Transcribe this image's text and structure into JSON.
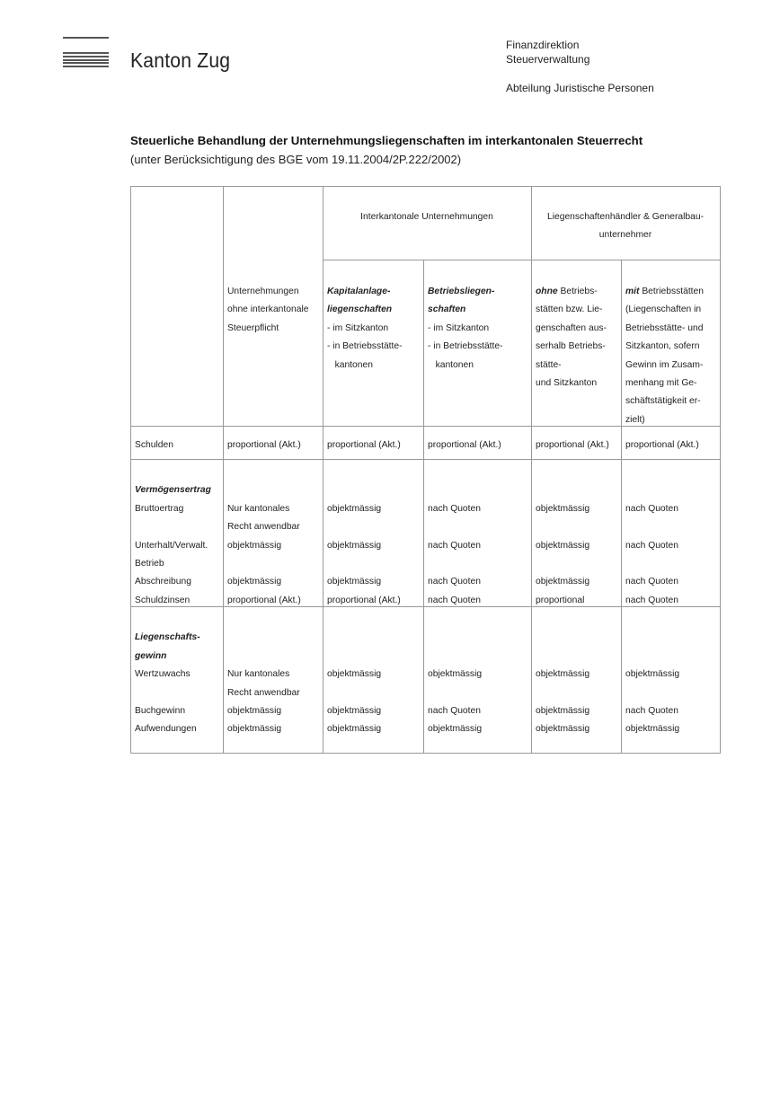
{
  "header": {
    "brand": "Kanton Zug",
    "department": "Finanzdirektion",
    "office": "Steuerverwaltung",
    "division": "Abteilung Juristische Personen"
  },
  "document": {
    "title": "Steuerliche Behandlung der Unternehmungsliegenschaften im interkantonalen Steuerrecht",
    "subtitle": "(unter Berücksichtigung des BGE vom 19.11.2004/2P.222/2002)"
  },
  "table": {
    "cells": [
      {
        "id": "group-interkantonal",
        "lines": [
          {
            "text": "Interkantonale Unternehmungen"
          }
        ]
      },
      {
        "id": "group-liegenschaftenhaendler",
        "lines": [
          {
            "text": "Liegenschaftenhändler & Generalbau-"
          },
          {
            "text": "unternehmer"
          }
        ]
      },
      {
        "id": "col-ohne-interkantonal",
        "lines": [
          {
            "text": "Unternehmungen"
          },
          {
            "text": "ohne interkantonale"
          },
          {
            "text": "Steuerpflicht"
          }
        ]
      },
      {
        "id": "col-kapitalanlage",
        "lines": [
          {
            "em": "Kapitalanlage-"
          },
          {
            "em": "liegenschaften"
          },
          {
            "text": "- im Sitzkanton"
          },
          {
            "text": "- in Betriebsstätte-"
          },
          {
            "text": "   kantonen"
          }
        ]
      },
      {
        "id": "col-betriebsliegenschaften",
        "lines": [
          {
            "em": "Betriebsliegen-"
          },
          {
            "em": "schaften"
          },
          {
            "text": "- im Sitzkanton"
          },
          {
            "text": "- in Betriebsstätte-"
          },
          {
            "text": "   kantonen"
          }
        ]
      },
      {
        "id": "col-ohne-betriebsstaetten",
        "lines": [
          {
            "em": "ohne",
            "text": " Betriebs-"
          },
          {
            "text": "stätten bzw. Lie-"
          },
          {
            "text": "genschaften aus-"
          },
          {
            "text": "serhalb Betriebs-"
          },
          {
            "text": "stätte-"
          },
          {
            "text": "und Sitzkanton"
          }
        ]
      },
      {
        "id": "col-mit-betriebsstaetten",
        "lines": [
          {
            "em": "mit",
            "text": " Betriebsstätten"
          },
          {
            "text": "(Liegenschaften in"
          },
          {
            "text": "Betriebsstätte- und"
          },
          {
            "text": "Sitzkanton, sofern"
          },
          {
            "text": "Gewinn im Zusam-"
          },
          {
            "text": "menhang mit Ge-"
          },
          {
            "text": "schäftstätigkeit er-"
          },
          {
            "text": "zielt)"
          }
        ]
      }
    ],
    "rows": [
      {
        "id": "schulden",
        "cells": [
          [
            {
              "text": "Schulden"
            }
          ],
          [
            {
              "text": "proportional (Akt.)"
            }
          ],
          [
            {
              "text": "proportional (Akt.)"
            }
          ],
          [
            {
              "text": "proportional (Akt.)"
            }
          ],
          [
            {
              "text": "proportional (Akt.)"
            }
          ],
          [
            {
              "text": "proportional (Akt.)"
            }
          ]
        ]
      },
      {
        "id": "vermoegensertrag",
        "cells": [
          [
            {
              "text": ""
            },
            {
              "em": "Vermögensertrag"
            },
            {
              "text": "Bruttoertrag"
            },
            {
              "text": ""
            },
            {
              "text": "Unterhalt/Verwalt."
            },
            {
              "text": "Betrieb"
            },
            {
              "text": "Abschreibung"
            },
            {
              "text": "Schuldzinsen"
            }
          ],
          [
            {
              "text": ""
            },
            {
              "text": ""
            },
            {
              "text": "Nur kantonales"
            },
            {
              "text": "Recht anwendbar"
            },
            {
              "text": "objektmässig"
            },
            {
              "text": ""
            },
            {
              "text": "objektmässig"
            },
            {
              "text": "proportional (Akt.)"
            }
          ],
          [
            {
              "text": ""
            },
            {
              "text": ""
            },
            {
              "text": "objektmässig"
            },
            {
              "text": ""
            },
            {
              "text": "objektmässig"
            },
            {
              "text": ""
            },
            {
              "text": "objektmässig"
            },
            {
              "text": "proportional (Akt.)"
            }
          ],
          [
            {
              "text": ""
            },
            {
              "text": ""
            },
            {
              "text": "nach Quoten"
            },
            {
              "text": ""
            },
            {
              "text": "nach Quoten"
            },
            {
              "text": ""
            },
            {
              "text": "nach Quoten"
            },
            {
              "text": "nach Quoten"
            }
          ],
          [
            {
              "text": ""
            },
            {
              "text": ""
            },
            {
              "text": "objektmässig"
            },
            {
              "text": ""
            },
            {
              "text": "objektmässig"
            },
            {
              "text": ""
            },
            {
              "text": "objektmässig"
            },
            {
              "text": "proportional"
            }
          ],
          [
            {
              "text": ""
            },
            {
              "text": ""
            },
            {
              "text": "nach Quoten"
            },
            {
              "text": ""
            },
            {
              "text": "nach Quoten"
            },
            {
              "text": ""
            },
            {
              "text": "nach Quoten"
            },
            {
              "text": "nach Quoten"
            }
          ]
        ]
      },
      {
        "id": "liegenschaftsgewinn",
        "cells": [
          [
            {
              "text": ""
            },
            {
              "em": "Liegenschafts-"
            },
            {
              "em": "gewinn"
            },
            {
              "text": "Wertzuwachs"
            },
            {
              "text": ""
            },
            {
              "text": "Buchgewinn"
            },
            {
              "text": "Aufwendungen"
            }
          ],
          [
            {
              "text": ""
            },
            {
              "text": ""
            },
            {
              "text": ""
            },
            {
              "text": "Nur kantonales"
            },
            {
              "text": "Recht anwendbar"
            },
            {
              "text": "objektmässig"
            },
            {
              "text": "objektmässig"
            }
          ],
          [
            {
              "text": ""
            },
            {
              "text": ""
            },
            {
              "text": ""
            },
            {
              "text": "objektmässig"
            },
            {
              "text": ""
            },
            {
              "text": "objektmässig"
            },
            {
              "text": "objektmässig"
            }
          ],
          [
            {
              "text": ""
            },
            {
              "text": ""
            },
            {
              "text": ""
            },
            {
              "text": "objektmässig"
            },
            {
              "text": ""
            },
            {
              "text": "nach Quoten"
            },
            {
              "text": "objektmässig"
            }
          ],
          [
            {
              "text": ""
            },
            {
              "text": ""
            },
            {
              "text": ""
            },
            {
              "text": "objektmässig"
            },
            {
              "text": ""
            },
            {
              "text": "objektmässig"
            },
            {
              "text": "objektmässig"
            }
          ],
          [
            {
              "text": ""
            },
            {
              "text": ""
            },
            {
              "text": ""
            },
            {
              "text": "objektmässig"
            },
            {
              "text": ""
            },
            {
              "text": "nach Quoten"
            },
            {
              "text": "objektmässig"
            }
          ]
        ]
      }
    ]
  }
}
